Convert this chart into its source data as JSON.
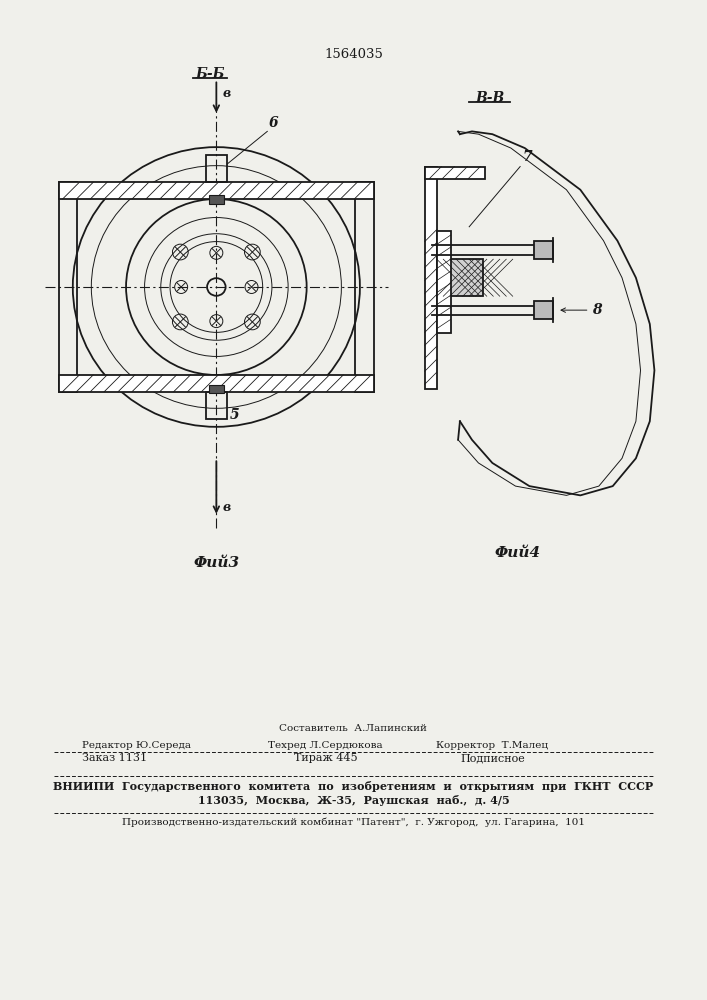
{
  "patent_number": "1564035",
  "bg_color": "#f0f0eb",
  "line_color": "#1a1a1a",
  "fig3_label": "Φий3",
  "fig4_label": "Φий4",
  "section_bb": "Б-Б",
  "section_vv": "В-В",
  "label_v": "в",
  "label_6": "6",
  "label_5": "5",
  "label_7": "7",
  "label_8": "8",
  "staff_line1": "Составитель  А.Лапинский",
  "editor_label": "Редактор Ю.Середа",
  "tehred_label": "Техред Л.Сердюкова",
  "korrektor_label": "Корректор  Т.Малец",
  "zakaz_label": "Заказ 1131",
  "tirazh_label": "Тираж 445",
  "podpisnoe_label": "Подписное",
  "vniip_line1": "ВНИИПИ  Государственного  комитета  по  изобретениям  и  открытиям  при  ГКНТ  СССР",
  "vniip_line2": "113035,  Москва,  Ж-35,  Раушская  наб.,  д. 4/5",
  "plant_line": "Производственно-издательский комбинат \"Патент\",  г. Ужгород,  ул. Гагарина,  101"
}
